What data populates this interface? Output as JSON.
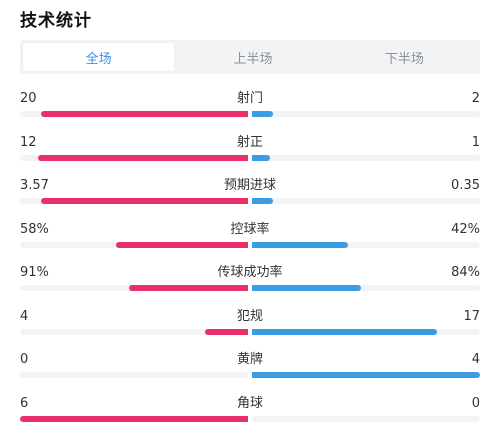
{
  "title": "技术统计",
  "tabs": [
    {
      "label": "全场",
      "active": true
    },
    {
      "label": "上半场",
      "active": false
    },
    {
      "label": "下半场",
      "active": false
    }
  ],
  "colors": {
    "home": "#e8316b",
    "away": "#3b9ce4",
    "active_tab": "#3a8ee6"
  },
  "stats": [
    {
      "label": "射门",
      "left": "20",
      "right": "2",
      "left_fill": 0.91,
      "right_fill": 0.09
    },
    {
      "label": "射正",
      "left": "12",
      "right": "1",
      "left_fill": 0.92,
      "right_fill": 0.08
    },
    {
      "label": "预期进球",
      "left": "3.57",
      "right": "0.35",
      "left_fill": 0.91,
      "right_fill": 0.09
    },
    {
      "label": "控球率",
      "left": "58%",
      "right": "42%",
      "left_fill": 0.58,
      "right_fill": 0.42
    },
    {
      "label": "传球成功率",
      "left": "91%",
      "right": "84%",
      "left_fill": 0.52,
      "right_fill": 0.48
    },
    {
      "label": "犯规",
      "left": "4",
      "right": "17",
      "left_fill": 0.19,
      "right_fill": 0.81
    },
    {
      "label": "黄牌",
      "left": "0",
      "right": "4",
      "left_fill": 0.0,
      "right_fill": 1.0
    },
    {
      "label": "角球",
      "left": "6",
      "right": "0",
      "left_fill": 1.0,
      "right_fill": 0.0
    }
  ]
}
